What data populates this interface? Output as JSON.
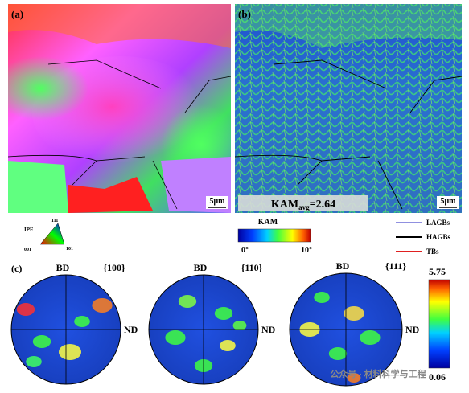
{
  "panels": {
    "a": {
      "label": "(a)",
      "scale_bar": "5μm"
    },
    "b": {
      "label": "(b)",
      "scale_bar": "5μm",
      "kam_avg": {
        "text": "KAM",
        "subscript": "avg",
        "value": "=2.64"
      }
    }
  },
  "ipf_legend": {
    "title": "IPF",
    "corners": [
      "001",
      "101",
      "111"
    ]
  },
  "kam_legend": {
    "title": "KAM",
    "min": "0°",
    "max": "10°"
  },
  "boundary_legend": [
    "LAGBs",
    "HAGBs",
    "TBs"
  ],
  "pole_figures": {
    "label": "(c)",
    "figures": [
      {
        "plane": "{100}",
        "top": "BD",
        "right": "ND"
      },
      {
        "plane": "{110}",
        "top": "BD",
        "right": "ND"
      },
      {
        "plane": "{111}",
        "top": "BD",
        "right": "ND"
      }
    ],
    "colorbar": {
      "max": "5.75",
      "min": "0.06"
    }
  },
  "watermark": "公众号 · 材料科学与工程"
}
